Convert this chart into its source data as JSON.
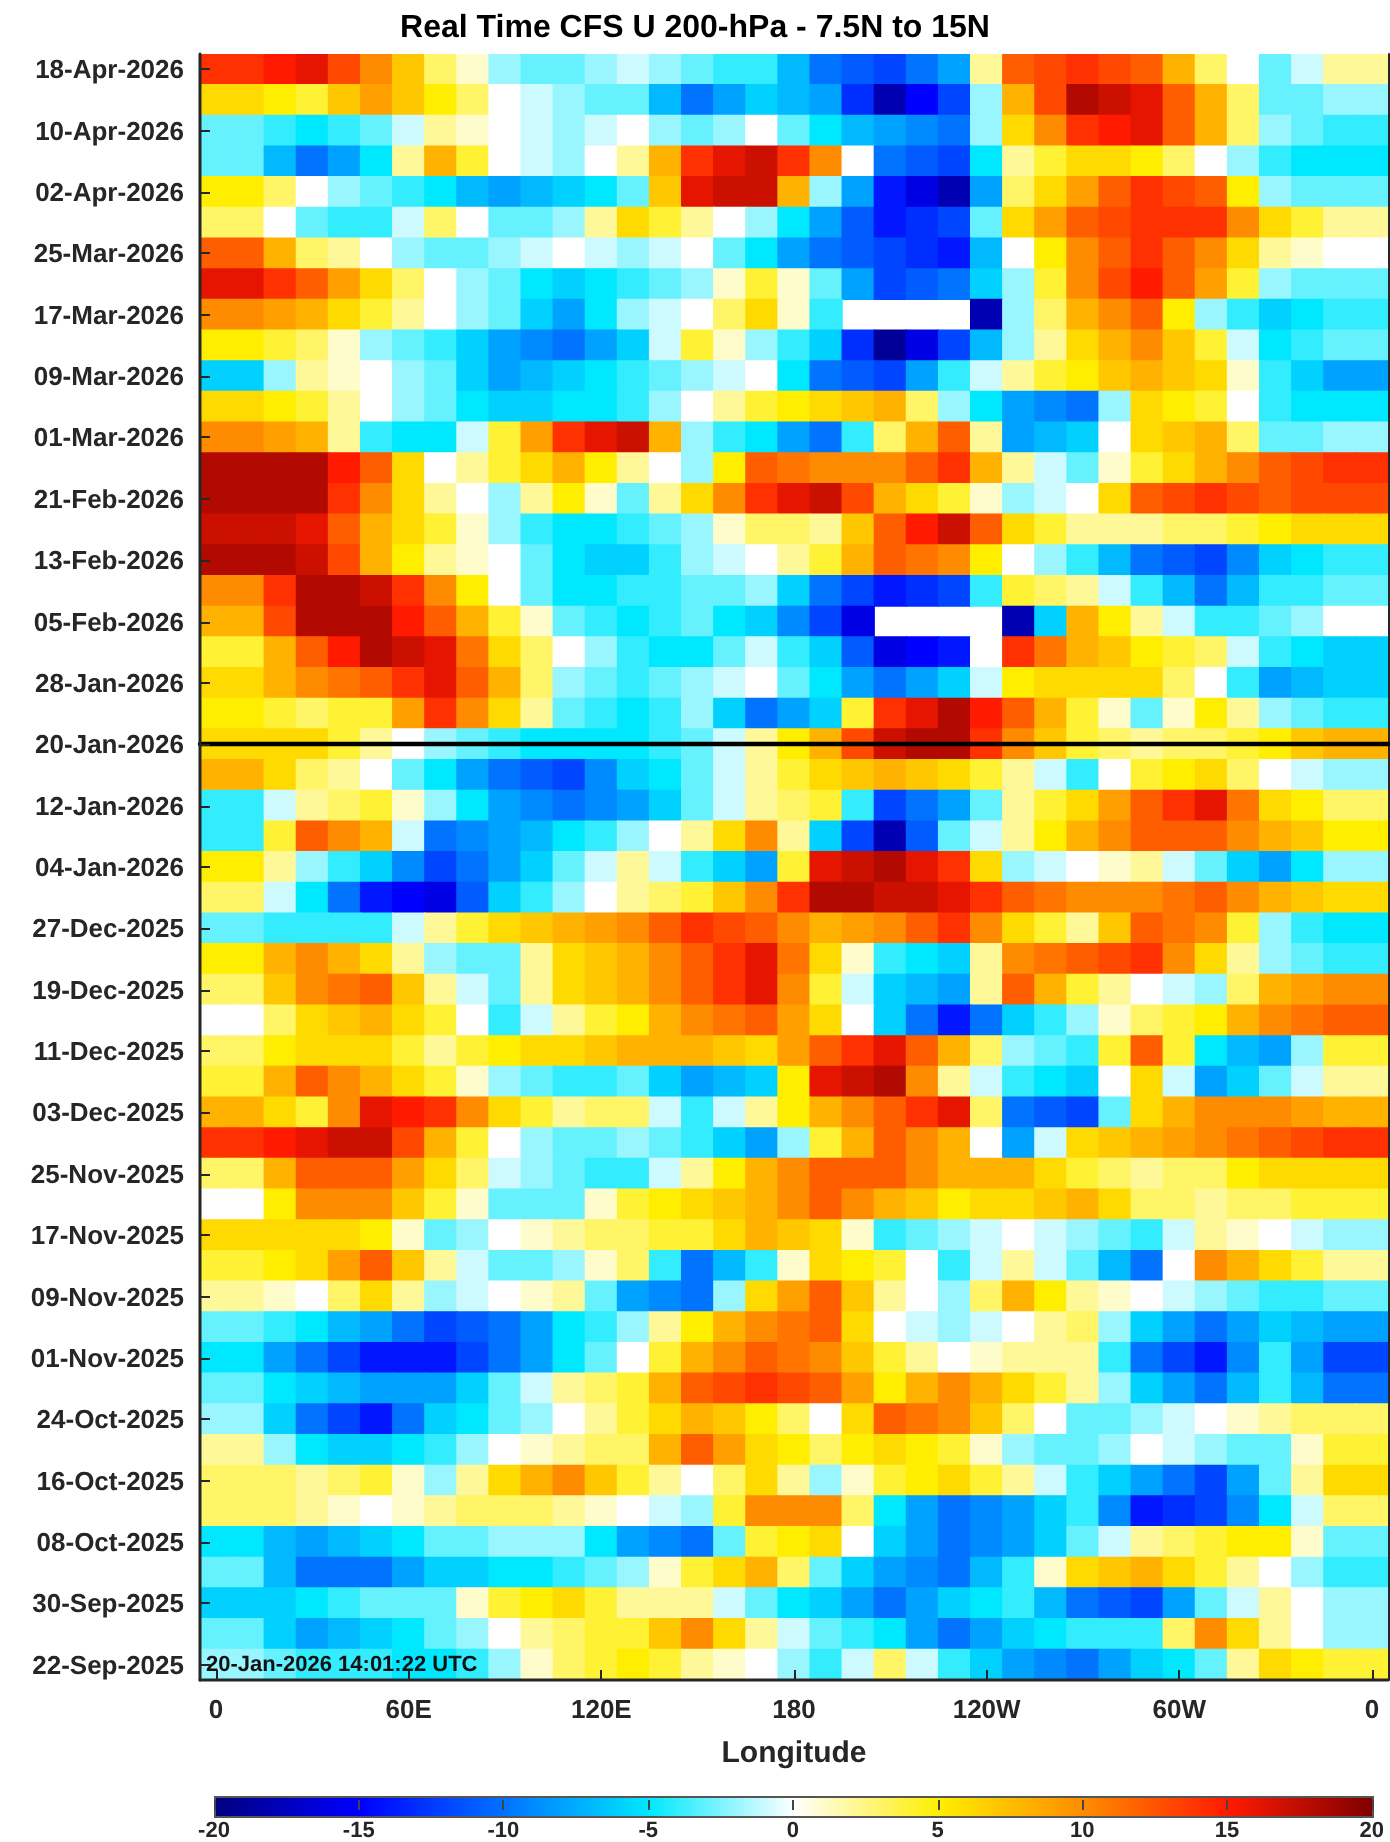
{
  "chart_data": {
    "type": "heatmap",
    "title": "Real Time CFS U 200-hPa - 7.5N to 15N",
    "xlabel": "Longitude",
    "annotations": [
      "20-Jan-2026 14:01:22 UTC"
    ],
    "categories": [
      "0",
      null,
      null,
      null,
      null,
      null,
      "60E",
      null,
      null,
      null,
      null,
      null,
      "120E",
      null,
      null,
      null,
      null,
      null,
      "180",
      null,
      null,
      null,
      null,
      null,
      "120W",
      null,
      null,
      null,
      null,
      null,
      "60W",
      null,
      null,
      null,
      null,
      null,
      "0"
    ],
    "y_categories": [
      "18-Apr-2026",
      null,
      "10-Apr-2026",
      null,
      "02-Apr-2026",
      null,
      "25-Mar-2026",
      null,
      "17-Mar-2026",
      null,
      "09-Mar-2026",
      null,
      "01-Mar-2026",
      null,
      "21-Feb-2026",
      null,
      "13-Feb-2026",
      null,
      "05-Feb-2026",
      null,
      "28-Jan-2026",
      null,
      "20-Jan-2026",
      null,
      "12-Jan-2026",
      null,
      "04-Jan-2026",
      null,
      "27-Dec-2025",
      null,
      "19-Dec-2025",
      null,
      "11-Dec-2025",
      null,
      "03-Dec-2025",
      null,
      "25-Nov-2025",
      null,
      "17-Nov-2025",
      null,
      "09-Nov-2025",
      null,
      "01-Nov-2025",
      null,
      "24-Oct-2025",
      null,
      "16-Oct-2025",
      null,
      "08-Oct-2025",
      null,
      "30-Sep-2025",
      null,
      "22-Sep-2025"
    ],
    "cells": [
      [
        14,
        14,
        15,
        16,
        13,
        10,
        7,
        3,
        1,
        -2,
        -3,
        -3,
        -2,
        -1,
        -2,
        -3,
        -4,
        -4,
        -7,
        -10,
        -11,
        -12,
        -10,
        -8,
        2,
        12,
        13,
        14,
        13,
        12,
        8,
        3,
        0,
        -3,
        -1,
        2,
        2
      ],
      [
        6,
        6,
        5,
        4,
        7,
        9,
        7,
        5,
        3,
        0,
        -1,
        -2,
        -3,
        -3,
        -7,
        -10,
        -8,
        -6,
        -7,
        -8,
        -13,
        -18,
        -15,
        -12,
        -2,
        8,
        13,
        18,
        17,
        16,
        12,
        8,
        3,
        -3,
        -3,
        -2,
        -2
      ],
      [
        -3,
        -3,
        -4,
        -5,
        -4,
        -3,
        -1,
        2,
        1,
        0,
        -1,
        -2,
        -1,
        0,
        -2,
        -3,
        -2,
        0,
        -3,
        -5,
        -7,
        -8,
        -9,
        -10,
        -2,
        6,
        10,
        14,
        15,
        16,
        12,
        8,
        3,
        -2,
        -3,
        -4,
        -4
      ],
      [
        -3,
        -3,
        -7,
        -10,
        -8,
        -5,
        2,
        8,
        4,
        0,
        -1,
        -2,
        0,
        2,
        8,
        14,
        16,
        17,
        14,
        10,
        0,
        -10,
        -11,
        -12,
        -5,
        2,
        4,
        6,
        6,
        5,
        3,
        0,
        -2,
        -4,
        -5,
        -5,
        -5
      ],
      [
        5,
        5,
        3,
        0,
        -2,
        -3,
        -4,
        -5,
        -7,
        -8,
        -7,
        -6,
        -5,
        -3,
        7,
        16,
        17,
        17,
        8,
        -2,
        -8,
        -14,
        -16,
        -18,
        -8,
        3,
        6,
        9,
        12,
        14,
        13,
        12,
        5,
        -2,
        -3,
        -3,
        -3
      ],
      [
        3,
        3,
        0,
        -3,
        -4,
        -4,
        -1,
        3,
        0,
        -3,
        -3,
        -2,
        2,
        6,
        4,
        2,
        0,
        -2,
        -5,
        -8,
        -11,
        -14,
        -13,
        -12,
        -3,
        6,
        9,
        12,
        13,
        14,
        14,
        14,
        10,
        6,
        4,
        2,
        2
      ],
      [
        12,
        12,
        8,
        3,
        2,
        0,
        -2,
        -3,
        -3,
        -2,
        -1,
        0,
        -1,
        -2,
        -1,
        0,
        -3,
        -5,
        -8,
        -10,
        -11,
        -12,
        -13,
        -14,
        -7,
        0,
        5,
        10,
        12,
        14,
        12,
        10,
        6,
        2,
        1,
        0,
        0
      ],
      [
        16,
        16,
        14,
        12,
        9,
        6,
        3,
        0,
        -2,
        -3,
        -5,
        -6,
        -5,
        -4,
        -3,
        -2,
        1,
        4,
        1,
        -3,
        -8,
        -12,
        -11,
        -10,
        -6,
        -2,
        4,
        10,
        13,
        15,
        12,
        9,
        4,
        -2,
        -3,
        -3,
        -3
      ],
      [
        10,
        10,
        9,
        8,
        6,
        4,
        2,
        0,
        -2,
        -3,
        -6,
        -8,
        -5,
        -2,
        -1,
        0,
        3,
        6,
        1,
        -4,
        null,
        null,
        null,
        null,
        -18,
        -2,
        3,
        8,
        10,
        12,
        5,
        -2,
        -4,
        -6,
        -5,
        -4,
        -4
      ],
      [
        5,
        5,
        4,
        3,
        1,
        -2,
        -3,
        -4,
        -6,
        -8,
        -9,
        -10,
        -8,
        -6,
        -1,
        4,
        1,
        -2,
        -4,
        -6,
        -13,
        -19,
        -16,
        -12,
        -7,
        -2,
        2,
        6,
        8,
        10,
        7,
        4,
        -1,
        -5,
        -4,
        -3,
        -3
      ],
      [
        -6,
        -6,
        -2,
        2,
        1,
        0,
        -2,
        -3,
        -6,
        -8,
        -7,
        -6,
        -5,
        -4,
        -3,
        -2,
        -1,
        0,
        -5,
        -10,
        -11,
        -12,
        -8,
        -4,
        -1,
        2,
        4,
        5,
        7,
        8,
        7,
        6,
        1,
        -4,
        -6,
        -8,
        -8
      ],
      [
        6,
        6,
        5,
        4,
        2,
        0,
        -2,
        -3,
        -5,
        -6,
        -6,
        -5,
        -5,
        -4,
        -2,
        0,
        2,
        4,
        5,
        6,
        7,
        8,
        3,
        -2,
        -5,
        -8,
        -9,
        -10,
        -2,
        6,
        5,
        4,
        0,
        -4,
        -5,
        -5,
        -5
      ],
      [
        10,
        10,
        9,
        8,
        2,
        -4,
        -5,
        -5,
        -1,
        4,
        9,
        14,
        16,
        17,
        8,
        -2,
        -4,
        -5,
        -8,
        -10,
        -4,
        3,
        8,
        12,
        2,
        -8,
        -7,
        -6,
        0,
        6,
        7,
        8,
        3,
        -3,
        -3,
        -2,
        -2
      ],
      [
        18,
        18,
        18,
        18,
        15,
        12,
        6,
        0,
        2,
        4,
        6,
        8,
        5,
        2,
        0,
        -2,
        5,
        12,
        11,
        10,
        10,
        10,
        12,
        14,
        8,
        2,
        -1,
        -3,
        1,
        4,
        6,
        8,
        10,
        12,
        13,
        14,
        14
      ],
      [
        18,
        18,
        18,
        18,
        14,
        10,
        6,
        2,
        0,
        -2,
        2,
        5,
        1,
        -3,
        2,
        6,
        10,
        14,
        16,
        17,
        13,
        8,
        6,
        4,
        1,
        -2,
        -1,
        0,
        6,
        12,
        13,
        14,
        13,
        12,
        13,
        13,
        13
      ],
      [
        17,
        17,
        17,
        16,
        12,
        8,
        6,
        4,
        1,
        -2,
        -4,
        -5,
        -5,
        -4,
        -3,
        -2,
        1,
        3,
        3,
        2,
        7,
        12,
        15,
        17,
        12,
        6,
        4,
        2,
        2,
        2,
        3,
        3,
        4,
        5,
        6,
        6,
        6
      ],
      [
        18,
        18,
        18,
        17,
        13,
        8,
        5,
        2,
        1,
        0,
        -3,
        -5,
        -6,
        -6,
        -4,
        -2,
        -1,
        0,
        2,
        4,
        8,
        12,
        11,
        10,
        5,
        0,
        -2,
        -4,
        -7,
        -10,
        -11,
        -12,
        -9,
        -6,
        -5,
        -4,
        -4
      ],
      [
        10,
        10,
        14,
        18,
        18,
        17,
        14,
        10,
        5,
        0,
        -3,
        -5,
        -5,
        -4,
        -4,
        -3,
        -3,
        -2,
        -6,
        -10,
        -12,
        -14,
        -13,
        -12,
        -4,
        4,
        3,
        2,
        -1,
        -4,
        -7,
        -10,
        -7,
        -4,
        -4,
        -3,
        -3
      ],
      [
        8,
        8,
        13,
        18,
        18,
        18,
        15,
        12,
        8,
        4,
        1,
        -3,
        -4,
        -5,
        -4,
        -3,
        -5,
        -6,
        -9,
        -12,
        -16,
        null,
        null,
        null,
        null,
        -18,
        -6,
        8,
        5,
        2,
        -1,
        -4,
        -4,
        -3,
        -2,
        0,
        0
      ],
      [
        4,
        4,
        8,
        12,
        15,
        18,
        17,
        16,
        11,
        6,
        3,
        0,
        -2,
        -4,
        -5,
        -5,
        -3,
        -1,
        -4,
        -6,
        -11,
        -16,
        -15,
        -14,
        0,
        14,
        11,
        8,
        7,
        5,
        4,
        3,
        -1,
        -4,
        -5,
        -6,
        -6
      ],
      [
        6,
        6,
        8,
        10,
        11,
        12,
        14,
        16,
        12,
        8,
        3,
        -2,
        -3,
        -4,
        -3,
        -2,
        -1,
        0,
        -3,
        -5,
        -8,
        -10,
        -8,
        -6,
        -1,
        5,
        6,
        6,
        6,
        6,
        3,
        0,
        -4,
        -8,
        -7,
        -6,
        -6
      ],
      [
        5,
        5,
        4,
        3,
        4,
        4,
        9,
        14,
        10,
        6,
        2,
        -3,
        -4,
        -5,
        -4,
        -2,
        -6,
        -10,
        -8,
        -6,
        4,
        14,
        16,
        18,
        15,
        12,
        8,
        4,
        1,
        -3,
        1,
        5,
        2,
        -2,
        -3,
        -4,
        -4
      ],
      [
        6,
        6,
        6,
        6,
        4,
        2,
        0,
        -2,
        -3,
        -4,
        -5,
        -5,
        -5,
        -5,
        -4,
        -3,
        -1,
        2,
        5,
        8,
        13,
        17,
        18,
        18,
        14,
        10,
        7,
        4,
        3,
        2,
        3,
        3,
        4,
        5,
        7,
        8,
        8
      ],
      [
        8,
        8,
        6,
        3,
        2,
        0,
        -3,
        -5,
        -8,
        -10,
        -11,
        -12,
        -9,
        -6,
        -5,
        -3,
        -1,
        2,
        4,
        6,
        7,
        8,
        7,
        6,
        4,
        2,
        -1,
        -4,
        0,
        4,
        5,
        6,
        3,
        0,
        -1,
        -2,
        -2
      ],
      [
        -4,
        -4,
        -1,
        2,
        3,
        4,
        1,
        -2,
        -5,
        -8,
        -9,
        -10,
        -9,
        -8,
        -6,
        -3,
        -1,
        2,
        3,
        4,
        -4,
        -12,
        -10,
        -8,
        -3,
        2,
        4,
        6,
        9,
        12,
        14,
        16,
        11,
        6,
        5,
        3,
        3
      ],
      [
        -4,
        -4,
        4,
        12,
        10,
        8,
        -1,
        -10,
        -9,
        -8,
        -7,
        -5,
        -4,
        -2,
        0,
        2,
        6,
        10,
        2,
        -6,
        -12,
        -18,
        -11,
        -3,
        -1,
        2,
        5,
        8,
        10,
        12,
        12,
        12,
        10,
        8,
        7,
        5,
        5
      ],
      [
        5,
        5,
        2,
        -2,
        -4,
        -6,
        -9,
        -12,
        -10,
        -8,
        -6,
        -3,
        -1,
        2,
        -1,
        -4,
        -6,
        -8,
        4,
        16,
        17,
        18,
        16,
        14,
        6,
        -2,
        -1,
        0,
        1,
        2,
        -1,
        -3,
        -6,
        -8,
        -5,
        -2,
        -2
      ],
      [
        3,
        3,
        -1,
        -5,
        -10,
        -14,
        -15,
        -16,
        -11,
        -6,
        -4,
        -2,
        0,
        2,
        3,
        4,
        7,
        10,
        14,
        18,
        18,
        17,
        17,
        16,
        14,
        12,
        11,
        10,
        10,
        10,
        11,
        12,
        10,
        8,
        7,
        6,
        6
      ],
      [
        -3,
        -3,
        -4,
        -4,
        -4,
        -4,
        -1,
        2,
        4,
        6,
        7,
        8,
        9,
        10,
        12,
        14,
        13,
        12,
        10,
        8,
        9,
        10,
        12,
        14,
        10,
        6,
        4,
        2,
        7,
        12,
        11,
        10,
        4,
        -2,
        -4,
        -5,
        -5
      ],
      [
        5,
        5,
        8,
        10,
        8,
        6,
        2,
        -2,
        -3,
        -3,
        2,
        6,
        7,
        8,
        10,
        12,
        14,
        16,
        11,
        6,
        1,
        -4,
        -5,
        -6,
        2,
        10,
        11,
        12,
        13,
        14,
        10,
        6,
        2,
        -2,
        -3,
        -4,
        -4
      ],
      [
        3,
        3,
        7,
        10,
        11,
        12,
        7,
        2,
        -1,
        -3,
        2,
        6,
        7,
        8,
        10,
        12,
        14,
        16,
        10,
        4,
        -1,
        -6,
        -7,
        -8,
        2,
        12,
        8,
        4,
        2,
        0,
        -1,
        -2,
        3,
        8,
        9,
        10,
        10
      ],
      [
        0,
        0,
        3,
        6,
        7,
        8,
        6,
        4,
        0,
        -4,
        -1,
        2,
        4,
        5,
        8,
        10,
        11,
        12,
        9,
        6,
        0,
        -6,
        -10,
        -14,
        -10,
        -6,
        -4,
        -2,
        1,
        3,
        4,
        5,
        8,
        10,
        11,
        12,
        12
      ],
      [
        3,
        3,
        5,
        6,
        6,
        6,
        4,
        2,
        4,
        5,
        6,
        6,
        7,
        8,
        8,
        8,
        7,
        6,
        9,
        12,
        14,
        16,
        12,
        8,
        3,
        -2,
        -3,
        -4,
        4,
        12,
        4,
        -5,
        -7,
        -8,
        -2,
        4,
        4
      ],
      [
        4,
        4,
        8,
        12,
        10,
        8,
        6,
        4,
        1,
        -2,
        -3,
        -4,
        -4,
        -3,
        -6,
        -8,
        -7,
        -6,
        5,
        16,
        17,
        18,
        10,
        2,
        -1,
        -4,
        -5,
        -6,
        0,
        6,
        -1,
        -8,
        -6,
        -3,
        -1,
        2,
        2
      ],
      [
        8,
        8,
        6,
        4,
        10,
        16,
        15,
        14,
        10,
        6,
        4,
        2,
        3,
        3,
        -1,
        -4,
        -1,
        2,
        5,
        8,
        10,
        12,
        14,
        16,
        3,
        -10,
        -11,
        -12,
        -3,
        6,
        8,
        10,
        10,
        10,
        9,
        8,
        8
      ],
      [
        14,
        14,
        15,
        16,
        17,
        17,
        13,
        8,
        4,
        0,
        -2,
        -3,
        -3,
        -2,
        -3,
        -4,
        -6,
        -8,
        -2,
        4,
        8,
        12,
        10,
        8,
        0,
        -8,
        -1,
        6,
        7,
        8,
        9,
        10,
        11,
        12,
        13,
        14,
        14
      ],
      [
        3,
        3,
        8,
        12,
        12,
        12,
        9,
        6,
        3,
        -1,
        -2,
        -3,
        -4,
        -4,
        -1,
        2,
        5,
        8,
        10,
        12,
        12,
        12,
        10,
        8,
        8,
        8,
        6,
        4,
        3,
        2,
        3,
        3,
        5,
        6,
        6,
        6,
        6
      ],
      [
        0,
        0,
        5,
        10,
        10,
        10,
        7,
        4,
        1,
        -3,
        -3,
        -3,
        1,
        4,
        5,
        6,
        7,
        8,
        10,
        12,
        10,
        8,
        7,
        5,
        6,
        6,
        7,
        8,
        6,
        3,
        3,
        2,
        3,
        3,
        4,
        4,
        4
      ],
      [
        6,
        6,
        6,
        6,
        6,
        5,
        1,
        -3,
        -2,
        0,
        1,
        2,
        3,
        3,
        4,
        4,
        6,
        8,
        7,
        6,
        1,
        -4,
        -3,
        -2,
        -1,
        0,
        -1,
        -2,
        -3,
        -4,
        -1,
        2,
        1,
        0,
        -1,
        -2,
        -2
      ],
      [
        4,
        4,
        5,
        6,
        9,
        12,
        7,
        2,
        -1,
        -3,
        -3,
        -2,
        1,
        3,
        -4,
        -10,
        -7,
        -4,
        1,
        6,
        5,
        4,
        0,
        -4,
        -1,
        2,
        -1,
        -3,
        -7,
        -10,
        0,
        10,
        8,
        6,
        4,
        2,
        2
      ],
      [
        2,
        2,
        1,
        0,
        3,
        6,
        2,
        -2,
        -1,
        0,
        1,
        2,
        -3,
        -8,
        -9,
        -10,
        -2,
        6,
        9,
        12,
        7,
        2,
        0,
        -2,
        3,
        8,
        5,
        2,
        1,
        0,
        -1,
        -2,
        -3,
        -4,
        -4,
        -3,
        -3
      ],
      [
        -3,
        -3,
        -4,
        -5,
        -7,
        -8,
        -10,
        -12,
        -11,
        -10,
        -8,
        -5,
        -4,
        -2,
        2,
        5,
        8,
        10,
        11,
        12,
        6,
        0,
        -1,
        -2,
        -1,
        0,
        2,
        3,
        -2,
        -6,
        -8,
        -10,
        -8,
        -6,
        -7,
        -8,
        -8
      ],
      [
        -5,
        -5,
        -8,
        -10,
        -12,
        -14,
        -14,
        -14,
        -12,
        -10,
        -8,
        -5,
        -3,
        0,
        4,
        8,
        10,
        12,
        11,
        10,
        7,
        4,
        2,
        0,
        1,
        2,
        2,
        2,
        -4,
        -10,
        -12,
        -14,
        -9,
        -4,
        -8,
        -12,
        -12
      ],
      [
        -3,
        -3,
        -5,
        -6,
        -7,
        -8,
        -8,
        -8,
        -6,
        -3,
        -1,
        2,
        3,
        4,
        8,
        12,
        13,
        14,
        13,
        12,
        9,
        5,
        8,
        10,
        8,
        6,
        4,
        2,
        -2,
        -6,
        -8,
        -10,
        -7,
        -4,
        -7,
        -10,
        -10
      ],
      [
        -2,
        -2,
        -6,
        -10,
        -12,
        -14,
        -10,
        -6,
        -5,
        -3,
        -2,
        0,
        2,
        4,
        6,
        8,
        7,
        5,
        3,
        0,
        6,
        12,
        11,
        10,
        7,
        3,
        0,
        -3,
        -3,
        -2,
        -1,
        0,
        1,
        2,
        3,
        3,
        3
      ],
      [
        2,
        2,
        -2,
        -5,
        -6,
        -6,
        -5,
        -4,
        -2,
        0,
        1,
        2,
        3,
        3,
        8,
        12,
        9,
        6,
        5,
        3,
        5,
        6,
        5,
        4,
        1,
        -2,
        -3,
        -3,
        -2,
        0,
        -1,
        -2,
        -3,
        -3,
        1,
        4,
        4
      ],
      [
        3,
        3,
        3,
        2,
        3,
        4,
        1,
        -2,
        2,
        6,
        8,
        10,
        7,
        4,
        2,
        0,
        3,
        6,
        2,
        -2,
        1,
        4,
        5,
        6,
        4,
        2,
        -1,
        -4,
        -6,
        -8,
        -10,
        -12,
        -8,
        -3,
        2,
        6,
        6
      ],
      [
        3,
        3,
        3,
        2,
        1,
        0,
        1,
        2,
        3,
        3,
        3,
        2,
        1,
        0,
        -1,
        -2,
        4,
        10,
        10,
        10,
        3,
        -5,
        -8,
        -10,
        -9,
        -8,
        -6,
        -4,
        -9,
        -14,
        -13,
        -12,
        -9,
        -5,
        -1,
        3,
        3
      ],
      [
        -5,
        -5,
        -7,
        -8,
        -7,
        -6,
        -5,
        -3,
        -3,
        -2,
        -2,
        -2,
        -5,
        -8,
        -9,
        -10,
        -3,
        4,
        5,
        6,
        0,
        -6,
        -8,
        -10,
        -9,
        -8,
        -6,
        -3,
        -1,
        2,
        3,
        4,
        5,
        5,
        1,
        -3,
        -3
      ],
      [
        -3,
        -3,
        -7,
        -10,
        -10,
        -10,
        -8,
        -6,
        -6,
        -5,
        -5,
        -4,
        -3,
        -2,
        1,
        4,
        6,
        8,
        3,
        -3,
        -6,
        -8,
        -9,
        -10,
        -7,
        -4,
        1,
        6,
        7,
        8,
        6,
        4,
        2,
        0,
        -2,
        -4,
        -4
      ],
      [
        -6,
        -6,
        -6,
        -5,
        -4,
        -3,
        -3,
        -3,
        1,
        4,
        5,
        6,
        4,
        2,
        2,
        2,
        -1,
        -3,
        -5,
        -6,
        -8,
        -10,
        -8,
        -6,
        -5,
        -4,
        -7,
        -10,
        -11,
        -12,
        -8,
        -3,
        -1,
        2,
        0,
        -2,
        -2
      ],
      [
        -3,
        -3,
        -6,
        -8,
        -7,
        -6,
        -5,
        -3,
        -2,
        0,
        2,
        3,
        4,
        4,
        7,
        10,
        6,
        2,
        -1,
        -3,
        -4,
        -5,
        -8,
        -10,
        -8,
        -6,
        -5,
        -4,
        -4,
        -4,
        3,
        10,
        6,
        2,
        0,
        -2,
        -2
      ],
      [
        -2,
        -2,
        -3,
        -4,
        -4,
        -4,
        -5,
        -5,
        -4,
        -2,
        1,
        3,
        4,
        5,
        4,
        2,
        1,
        0,
        -2,
        -4,
        -1,
        3,
        -1,
        -4,
        -6,
        -8,
        -9,
        -10,
        -8,
        -6,
        -5,
        -3,
        2,
        6,
        5,
        4,
        4
      ]
    ],
    "clim": [
      -20,
      20
    ],
    "cticks": [
      -20,
      -15,
      -10,
      -5,
      0,
      5,
      10,
      15,
      20
    ],
    "ref_lines": [
      {
        "axis": "y",
        "value": "20-Jan-2026",
        "color": "#000000"
      }
    ]
  }
}
